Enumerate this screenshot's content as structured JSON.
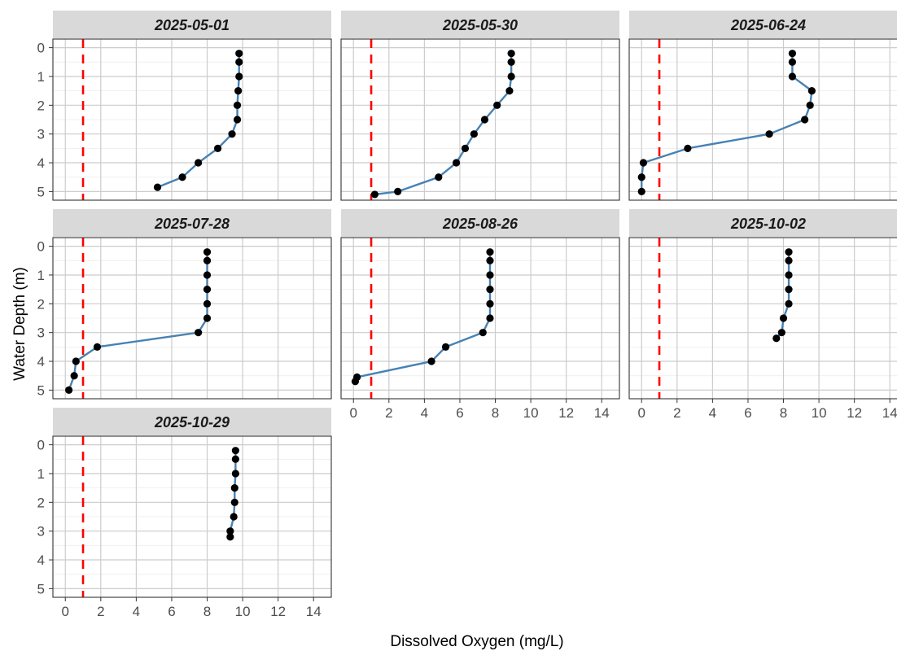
{
  "chart_data": {
    "type": "line",
    "facet_layout": "3 columns x 3 rows, free y tick labels on left column, x tick labels on bottom panels",
    "xlabel": "Dissolved Oxygen (mg/L)",
    "ylabel": "Water Depth (m)",
    "xlim": [
      -0.7,
      15
    ],
    "ylim": [
      5.3,
      -0.3
    ],
    "y_reversed": true,
    "x_ticks": [
      0,
      2,
      4,
      6,
      8,
      10,
      12,
      14
    ],
    "y_ticks": [
      0,
      1,
      2,
      3,
      4,
      5
    ],
    "grid": true,
    "reference_line": {
      "x": 1,
      "style": "dashed",
      "color": "#ff0000"
    },
    "line_color": "#4682b4",
    "point_color": "#000000",
    "strip_color": "#d9d9d9",
    "panels": [
      {
        "title": "2025-05-01",
        "points": [
          [
            9.8,
            0.2
          ],
          [
            9.8,
            0.5
          ],
          [
            9.8,
            1.0
          ],
          [
            9.75,
            1.5
          ],
          [
            9.7,
            2.0
          ],
          [
            9.7,
            2.5
          ],
          [
            9.4,
            3.0
          ],
          [
            8.6,
            3.5
          ],
          [
            7.5,
            4.0
          ],
          [
            6.6,
            4.5
          ],
          [
            5.2,
            4.85
          ]
        ]
      },
      {
        "title": "2025-05-30",
        "points": [
          [
            8.9,
            0.2
          ],
          [
            8.9,
            0.5
          ],
          [
            8.9,
            1.0
          ],
          [
            8.8,
            1.5
          ],
          [
            8.1,
            2.0
          ],
          [
            7.4,
            2.5
          ],
          [
            6.8,
            3.0
          ],
          [
            6.3,
            3.5
          ],
          [
            5.8,
            4.0
          ],
          [
            4.8,
            4.5
          ],
          [
            2.5,
            5.0
          ],
          [
            1.2,
            5.1
          ]
        ]
      },
      {
        "title": "2025-06-24",
        "points": [
          [
            8.5,
            0.2
          ],
          [
            8.5,
            0.5
          ],
          [
            8.5,
            1.0
          ],
          [
            9.6,
            1.5
          ],
          [
            9.5,
            2.0
          ],
          [
            9.2,
            2.5
          ],
          [
            7.2,
            3.0
          ],
          [
            2.6,
            3.5
          ],
          [
            0.1,
            4.0
          ],
          [
            0.0,
            4.5
          ],
          [
            0.0,
            5.0
          ]
        ]
      },
      {
        "title": "2025-07-28",
        "points": [
          [
            8.0,
            0.2
          ],
          [
            8.0,
            0.5
          ],
          [
            8.0,
            1.0
          ],
          [
            8.0,
            1.5
          ],
          [
            8.0,
            2.0
          ],
          [
            8.0,
            2.5
          ],
          [
            7.5,
            3.0
          ],
          [
            1.8,
            3.5
          ],
          [
            0.6,
            4.0
          ],
          [
            0.5,
            4.5
          ],
          [
            0.2,
            5.0
          ]
        ]
      },
      {
        "title": "2025-08-26",
        "points": [
          [
            7.7,
            0.2
          ],
          [
            7.7,
            0.5
          ],
          [
            7.7,
            1.0
          ],
          [
            7.7,
            1.5
          ],
          [
            7.7,
            2.0
          ],
          [
            7.7,
            2.5
          ],
          [
            7.3,
            3.0
          ],
          [
            5.2,
            3.5
          ],
          [
            4.4,
            4.0
          ],
          [
            0.2,
            4.55
          ],
          [
            0.1,
            4.7
          ]
        ]
      },
      {
        "title": "2025-10-02",
        "points": [
          [
            8.3,
            0.2
          ],
          [
            8.3,
            0.5
          ],
          [
            8.3,
            1.0
          ],
          [
            8.3,
            1.5
          ],
          [
            8.3,
            2.0
          ],
          [
            8.0,
            2.5
          ],
          [
            7.9,
            3.0
          ],
          [
            7.6,
            3.2
          ]
        ]
      },
      {
        "title": "2025-10-29",
        "points": [
          [
            9.6,
            0.2
          ],
          [
            9.6,
            0.5
          ],
          [
            9.6,
            1.0
          ],
          [
            9.55,
            1.5
          ],
          [
            9.55,
            2.0
          ],
          [
            9.5,
            2.5
          ],
          [
            9.3,
            3.0
          ],
          [
            9.3,
            3.2
          ]
        ]
      }
    ]
  }
}
